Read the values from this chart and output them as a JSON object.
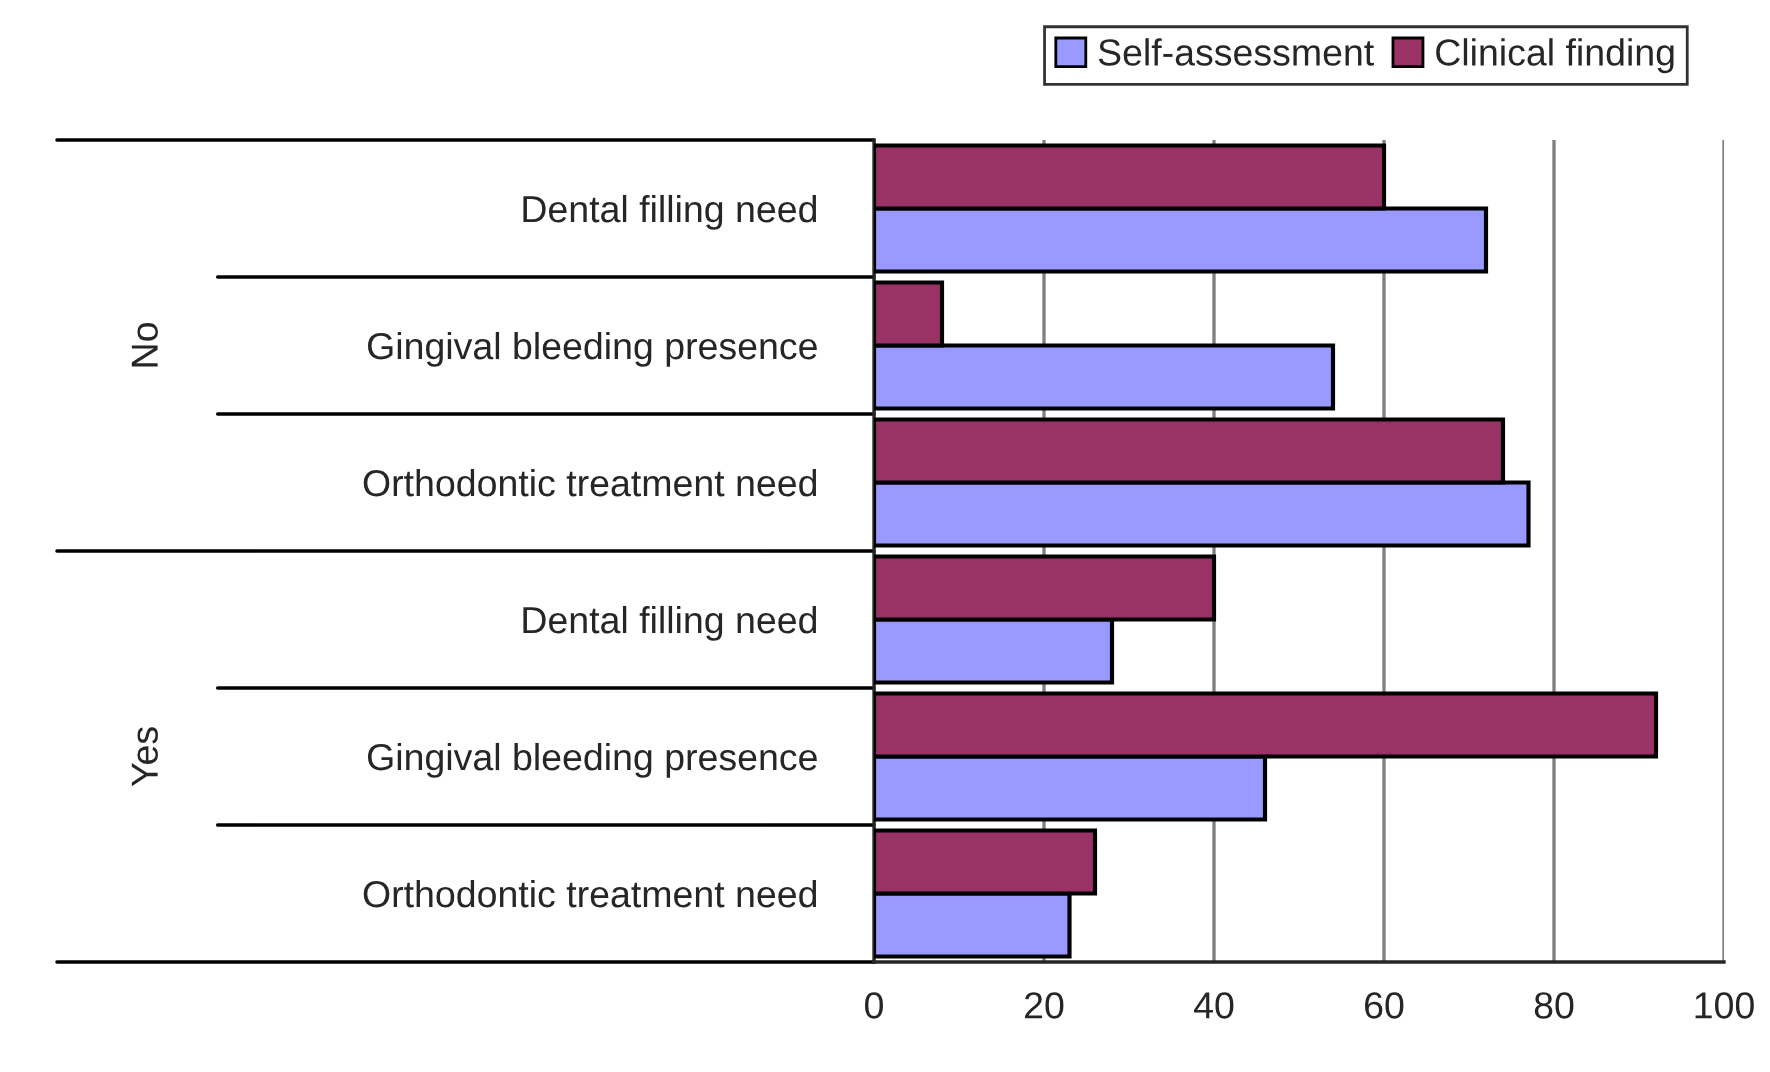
{
  "chart_data": {
    "type": "bar",
    "orientation": "horizontal",
    "categories": [
      "Dental filling need",
      "Gingival bleeding presence",
      "Orthodontic treatment need",
      "Dental filling need",
      "Gingival bleeding presence",
      "Orthodontic treatment need"
    ],
    "series": [
      {
        "name": "Self-assessment",
        "color": "#9999ff",
        "values": [
          72,
          54,
          77,
          28,
          46,
          23
        ]
      },
      {
        "name": "Clinical finding",
        "color": "#993366",
        "values": [
          60,
          8,
          74,
          40,
          92,
          26
        ]
      }
    ],
    "annotations": [
      "No",
      "Yes"
    ],
    "xlim": [
      0,
      100
    ],
    "xticks": [
      0,
      20,
      40,
      60,
      80,
      100
    ],
    "grid": "x",
    "legend": "top right"
  }
}
